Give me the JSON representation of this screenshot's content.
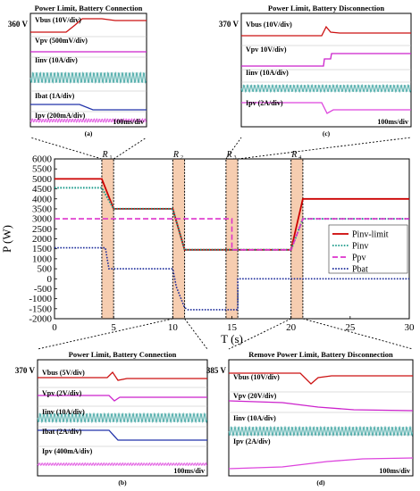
{
  "panels": {
    "a": {
      "title": "Power Limit, Battery Connection",
      "caption": "(a)",
      "side_value": "360 V",
      "timebase": "100ms/div",
      "signals": [
        "Vbus  (10V/div)",
        "Vpv  (500mV/div)",
        "Iinv  (10A/div)",
        "Ibat  (1A/div)",
        "Ipv  (200mA/div)"
      ]
    },
    "c": {
      "title": "Power Limit, Battery Disconnection",
      "caption": "(c)",
      "side_value": "370 V",
      "timebase": "100ms/div",
      "signals": [
        "Vbus  (10V/div)",
        "Vpv  10V/div)",
        "Iinv  (10A/div)",
        "Ipv  (2A/div)"
      ]
    },
    "b": {
      "title": "Power Limit, Battery Connection",
      "caption": "(b)",
      "side_value": "370 V",
      "timebase": "100ms/div",
      "signals": [
        "Vbus  (5V/div)",
        "Vpv  (2V/div)",
        "Iinv  (10A/div)",
        "Ibat  (2A/div)",
        "Ipv  (400mA/div)"
      ]
    },
    "d": {
      "title": "Remove Power Limit, Battery Disconnection",
      "caption": "(d)",
      "side_value": "385 V",
      "timebase": "100ms/div",
      "signals": [
        "Vbus  (10V/div)",
        "Vpv  (20V/div)",
        "Iinv  (10A/div)",
        "Ipv  (2A/div)"
      ]
    }
  },
  "regions": [
    {
      "label": "R",
      "sub": "1",
      "x0": 4.0,
      "x1": 5.0
    },
    {
      "label": "R",
      "sub": "2",
      "x0": 10.0,
      "x1": 11.0
    },
    {
      "label": "R",
      "sub": "3",
      "x0": 14.5,
      "x1": 15.5
    },
    {
      "label": "R",
      "sub": "4",
      "x0": 20.0,
      "x1": 21.0
    }
  ],
  "colors": {
    "Pinv-limit": "#cc0000",
    "Pinv": "#1a9a8a",
    "Ppv": "#dd33cc",
    "Pbat": "#1a2a9a",
    "region_fill": "#f6cdb0",
    "scope_bg": "#ffffff"
  },
  "chart_data": {
    "type": "line",
    "xlabel": "T (s)",
    "ylabel": "P (W)",
    "xlim": [
      0,
      30
    ],
    "ylim": [
      -2000,
      6000
    ],
    "xticks": [
      0,
      5,
      10,
      15,
      20,
      25,
      30
    ],
    "yticks": [
      -2000,
      -1500,
      -1000,
      -500,
      0,
      500,
      1000,
      1500,
      2000,
      2500,
      3000,
      3500,
      4000,
      4500,
      5000,
      5500,
      6000
    ],
    "legend_position": "right",
    "series": [
      {
        "name": "Pinv-limit",
        "style": "solid",
        "x": [
          0,
          4,
          5,
          10,
          11,
          20,
          21,
          30
        ],
        "y": [
          5000,
          5000,
          3500,
          3500,
          1450,
          1450,
          4000,
          4000
        ]
      },
      {
        "name": "Pinv",
        "style": "dotted",
        "x": [
          0,
          4,
          5,
          10,
          11,
          20,
          21,
          30
        ],
        "y": [
          4550,
          4550,
          3500,
          3500,
          1450,
          1450,
          3000,
          3000
        ]
      },
      {
        "name": "Ppv",
        "style": "dashed",
        "x": [
          0,
          15,
          15,
          15.5,
          20,
          21,
          30
        ],
        "y": [
          3000,
          3000,
          1450,
          1450,
          1450,
          3000,
          3000
        ]
      },
      {
        "name": "Pbat",
        "style": "dotted",
        "x": [
          0,
          4.3,
          4.6,
          10,
          10.3,
          11,
          11.3,
          15.5,
          15.5,
          30
        ],
        "y": [
          1550,
          1550,
          500,
          500,
          -400,
          -1450,
          -1550,
          -1550,
          0,
          0
        ]
      }
    ]
  }
}
